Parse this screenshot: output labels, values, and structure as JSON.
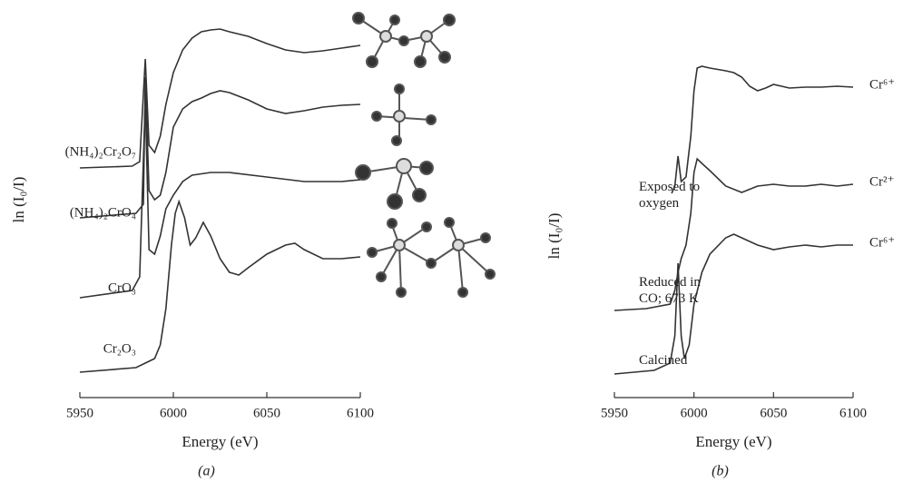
{
  "chart_data": [
    {
      "type": "line",
      "caption": "(a)",
      "xlabel": "Energy (eV)",
      "ylabel": "ln (I₀/I)",
      "xlim": [
        5950,
        6100
      ],
      "xticks": [
        5950,
        6000,
        6050,
        6100
      ],
      "ylim": [
        0,
        40.8
      ],
      "color": "#333333",
      "series": [
        {
          "name": "(NH₄)₂Cr₂O₇",
          "x": [
            5950,
            5978,
            5982,
            5985,
            5987,
            5990,
            5993,
            5996,
            6000,
            6005,
            6010,
            6015,
            6020,
            6025,
            6030,
            6040,
            6050,
            6060,
            6070,
            6080,
            6090,
            6100
          ],
          "values": [
            25.3,
            25.5,
            26.0,
            37.3,
            27.8,
            27.0,
            28.8,
            32.3,
            35.8,
            38.3,
            39.6,
            40.3,
            40.5,
            40.6,
            40.3,
            39.8,
            39.0,
            38.3,
            38.0,
            38.2,
            38.5,
            38.8
          ]
        },
        {
          "name": "(NH₄)₂CrO₄",
          "x": [
            5950,
            5980,
            5984,
            5985,
            5987,
            5990,
            5993,
            5996,
            6000,
            6005,
            6010,
            6015,
            6020,
            6025,
            6030,
            6040,
            6050,
            6060,
            6070,
            6080,
            6090,
            6100
          ],
          "values": [
            19.8,
            20.3,
            21.3,
            35.3,
            22.8,
            21.8,
            22.3,
            24.8,
            29.8,
            31.8,
            32.6,
            33.0,
            33.5,
            33.8,
            33.6,
            32.8,
            31.8,
            31.3,
            31.6,
            32.0,
            32.2,
            32.3
          ]
        },
        {
          "name": "CrO₃",
          "x": [
            5950,
            5978,
            5982,
            5985,
            5987,
            5990,
            5993,
            5996,
            6000,
            6005,
            6010,
            6020,
            6030,
            6050,
            6070,
            6090,
            6100
          ],
          "values": [
            11.0,
            11.8,
            13.3,
            32.8,
            16.3,
            15.8,
            17.8,
            20.8,
            22.3,
            23.8,
            24.5,
            24.8,
            24.8,
            24.3,
            23.8,
            23.8,
            24.0
          ]
        },
        {
          "name": "Cr₂O₃",
          "x": [
            5950,
            5980,
            5985,
            5990,
            5993,
            5996,
            5999,
            6001,
            6003,
            6006,
            6009,
            6012,
            6016,
            6020,
            6025,
            6030,
            6035,
            6040,
            6050,
            6060,
            6065,
            6070,
            6080,
            6090,
            6100
          ],
          "values": [
            2.8,
            3.3,
            3.8,
            4.3,
            5.8,
            9.8,
            16.8,
            20.3,
            21.6,
            19.8,
            16.8,
            17.6,
            19.3,
            17.8,
            15.3,
            13.8,
            13.5,
            14.3,
            15.8,
            16.8,
            17.0,
            16.3,
            15.3,
            15.3,
            15.5
          ]
        }
      ]
    },
    {
      "type": "line",
      "caption": "(b)",
      "xlabel": "Energy (eV)",
      "ylabel": "ln (I₀/I)",
      "xlim": [
        5950,
        6100
      ],
      "xticks": [
        5950,
        6000,
        6050,
        6100
      ],
      "ylim": [
        0,
        40.8
      ],
      "color": "#333333",
      "series": [
        {
          "name": "Exposed to oxygen",
          "end_label": "Cr⁶⁺",
          "x": [
            5986,
            5988,
            5990,
            5992,
            5995,
            5998,
            6000,
            6002,
            6005,
            6010,
            6020,
            6025,
            6030,
            6035,
            6040,
            6045,
            6050,
            6060,
            6070,
            6080,
            6090,
            6100
          ],
          "values": [
            22.5,
            23.3,
            26.6,
            23.8,
            24.3,
            28.8,
            33.8,
            36.3,
            36.5,
            36.3,
            36.0,
            35.8,
            35.3,
            34.3,
            33.8,
            34.1,
            34.5,
            34.1,
            34.2,
            34.2,
            34.3,
            34.2
          ]
        },
        {
          "name": "Reduced in CO; 673 K",
          "end_label": "Cr²⁺",
          "x": [
            5950,
            5970,
            5985,
            5988,
            5990,
            5992,
            5995,
            5998,
            6000,
            6002,
            6005,
            6010,
            6020,
            6030,
            6040,
            6050,
            6060,
            6070,
            6080,
            6090,
            6100
          ],
          "values": [
            9.6,
            9.8,
            10.3,
            11.8,
            13.8,
            15.3,
            16.8,
            20.3,
            24.8,
            26.3,
            25.8,
            25.0,
            23.3,
            22.6,
            23.3,
            23.5,
            23.3,
            23.3,
            23.5,
            23.3,
            23.5
          ]
        },
        {
          "name": "Calcined",
          "end_label": "Cr⁶⁺",
          "x": [
            5950,
            5975,
            5985,
            5988,
            5990,
            5992,
            5994,
            5997,
            6000,
            6005,
            6010,
            6020,
            6025,
            6030,
            6040,
            6050,
            6060,
            6070,
            6080,
            6090,
            6100
          ],
          "values": [
            2.6,
            3.0,
            3.8,
            6.8,
            14.8,
            6.8,
            4.3,
            5.8,
            10.3,
            13.8,
            15.8,
            17.6,
            18.0,
            17.6,
            16.8,
            16.3,
            16.6,
            16.8,
            16.6,
            16.8,
            16.8
          ]
        }
      ]
    }
  ]
}
